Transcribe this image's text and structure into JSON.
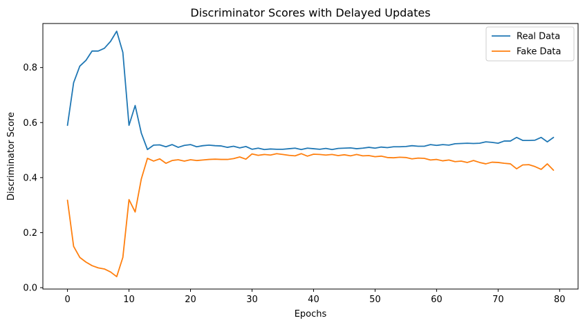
{
  "chart_data": {
    "type": "line",
    "title": "Discriminator Scores with Delayed Updates",
    "xlabel": "Epochs",
    "ylabel": "Discriminator Score",
    "xlim": [
      -4,
      83
    ],
    "ylim": [
      -0.005,
      0.96
    ],
    "xticks": [
      0,
      10,
      20,
      30,
      40,
      50,
      60,
      70,
      80
    ],
    "yticks": [
      0.0,
      0.2,
      0.4,
      0.6,
      0.8
    ],
    "xtick_labels": [
      "0",
      "10",
      "20",
      "30",
      "40",
      "50",
      "60",
      "70",
      "80"
    ],
    "ytick_labels": [
      "0.0",
      "0.2",
      "0.4",
      "0.6",
      "0.8"
    ],
    "grid": false,
    "legend_position": "upper-right",
    "x": [
      0,
      1,
      2,
      3,
      4,
      5,
      6,
      7,
      8,
      9,
      10,
      11,
      12,
      13,
      14,
      15,
      16,
      17,
      18,
      19,
      20,
      21,
      22,
      23,
      24,
      25,
      26,
      27,
      28,
      29,
      30,
      31,
      32,
      33,
      34,
      35,
      36,
      37,
      38,
      39,
      40,
      41,
      42,
      43,
      44,
      45,
      46,
      47,
      48,
      49,
      50,
      51,
      52,
      53,
      54,
      55,
      56,
      57,
      58,
      59,
      60,
      61,
      62,
      63,
      64,
      65,
      66,
      67,
      68,
      69,
      70,
      71,
      72,
      73,
      74,
      75,
      76,
      77,
      78,
      79
    ],
    "series": [
      {
        "name": "Real Data",
        "color": "#1f77b4",
        "values": [
          0.59,
          0.745,
          0.805,
          0.826,
          0.86,
          0.86,
          0.87,
          0.895,
          0.932,
          0.855,
          0.59,
          0.662,
          0.562,
          0.502,
          0.518,
          0.519,
          0.512,
          0.52,
          0.51,
          0.517,
          0.52,
          0.512,
          0.516,
          0.518,
          0.516,
          0.515,
          0.51,
          0.514,
          0.508,
          0.513,
          0.503,
          0.507,
          0.502,
          0.504,
          0.503,
          0.503,
          0.505,
          0.507,
          0.502,
          0.507,
          0.505,
          0.503,
          0.506,
          0.502,
          0.506,
          0.507,
          0.508,
          0.505,
          0.507,
          0.51,
          0.507,
          0.511,
          0.509,
          0.512,
          0.512,
          0.513,
          0.516,
          0.514,
          0.514,
          0.52,
          0.517,
          0.52,
          0.518,
          0.523,
          0.524,
          0.525,
          0.524,
          0.525,
          0.53,
          0.528,
          0.525,
          0.533,
          0.533,
          0.546,
          0.535,
          0.535,
          0.536,
          0.546,
          0.53,
          0.546
        ]
      },
      {
        "name": "Fake Data",
        "color": "#ff7f0e",
        "values": [
          0.318,
          0.15,
          0.11,
          0.093,
          0.08,
          0.072,
          0.068,
          0.057,
          0.04,
          0.11,
          0.32,
          0.275,
          0.395,
          0.47,
          0.46,
          0.468,
          0.452,
          0.462,
          0.465,
          0.46,
          0.465,
          0.462,
          0.464,
          0.466,
          0.467,
          0.466,
          0.466,
          0.469,
          0.475,
          0.467,
          0.486,
          0.481,
          0.484,
          0.482,
          0.487,
          0.484,
          0.481,
          0.479,
          0.487,
          0.478,
          0.485,
          0.484,
          0.482,
          0.484,
          0.48,
          0.483,
          0.479,
          0.484,
          0.479,
          0.48,
          0.476,
          0.478,
          0.473,
          0.472,
          0.474,
          0.473,
          0.468,
          0.471,
          0.47,
          0.464,
          0.466,
          0.461,
          0.464,
          0.458,
          0.46,
          0.455,
          0.462,
          0.455,
          0.45,
          0.456,
          0.455,
          0.452,
          0.45,
          0.432,
          0.446,
          0.447,
          0.44,
          0.43,
          0.45,
          0.427
        ]
      }
    ]
  }
}
